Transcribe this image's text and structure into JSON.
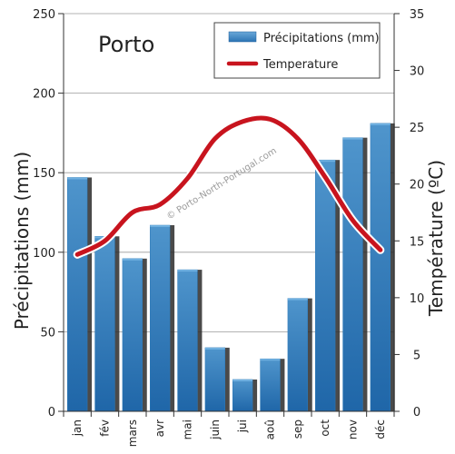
{
  "chart_data": {
    "type": "bar",
    "title": "Porto",
    "watermark": "© Porto-North-Portugal.com",
    "categories": [
      "jan",
      "fév",
      "mars",
      "avr",
      "mai",
      "juin",
      "jui",
      "aoû",
      "sep",
      "oct",
      "nov",
      "déc"
    ],
    "series": [
      {
        "name": "Précipitations (mm)",
        "type": "bar",
        "axis": "left",
        "color": "#2e7ab8",
        "values": [
          147,
          110,
          96,
          117,
          89,
          40,
          20,
          33,
          71,
          158,
          172,
          181
        ]
      },
      {
        "name": "Temperature",
        "type": "line",
        "axis": "right",
        "color": "#c8141e",
        "values": [
          13.8,
          15,
          17.5,
          18.2,
          20.5,
          24,
          25.5,
          25.7,
          24,
          20.6,
          16.8,
          14.2
        ]
      }
    ],
    "ylabel": "Précipitations (mm)",
    "ylim": [
      0,
      250
    ],
    "yticks": [
      0,
      50,
      100,
      150,
      200,
      250
    ],
    "y2label": "Température (ºC)",
    "y2lim": [
      0,
      35
    ],
    "y2ticks": [
      0,
      5,
      10,
      15,
      20,
      25,
      30,
      35
    ],
    "grid": true,
    "legend_position": "top-right"
  }
}
